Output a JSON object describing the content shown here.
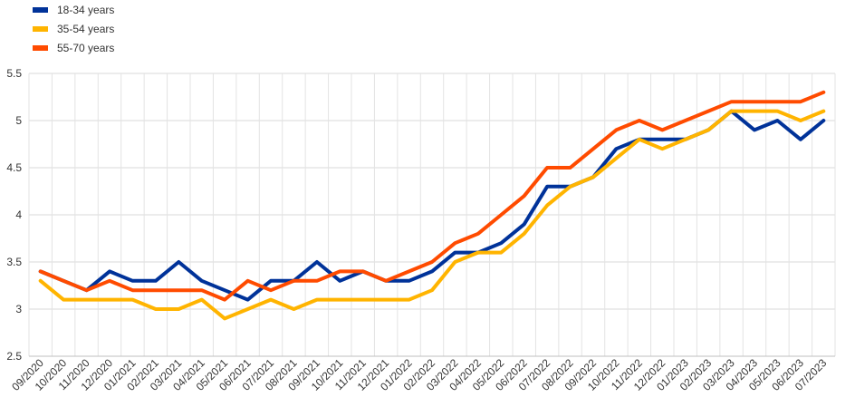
{
  "chart_data": {
    "type": "line",
    "title": "",
    "xlabel": "",
    "ylabel": "",
    "ylim": [
      2.5,
      5.5
    ],
    "yticks": [
      "2.5",
      "3",
      "3.5",
      "4",
      "4.5",
      "5",
      "5.5"
    ],
    "grid": true,
    "legend_position": "top-left",
    "categories": [
      "09/2020",
      "10/2020",
      "11/2020",
      "12/2020",
      "01/2021",
      "02/2021",
      "03/2021",
      "04/2021",
      "05/2021",
      "06/2021",
      "07/2021",
      "08/2021",
      "09/2021",
      "10/2021",
      "11/2021",
      "12/2021",
      "01/2022",
      "02/2022",
      "03/2022",
      "04/2022",
      "05/2022",
      "06/2022",
      "07/2022",
      "08/2022",
      "09/2022",
      "10/2022",
      "11/2022",
      "12/2022",
      "01/2023",
      "02/2023",
      "03/2023",
      "04/2023",
      "05/2023",
      "06/2023",
      "07/2023"
    ],
    "series": [
      {
        "name": "18-34 years",
        "color": "#003299",
        "values": [
          3.4,
          3.3,
          3.2,
          3.4,
          3.3,
          3.3,
          3.5,
          3.3,
          3.2,
          3.1,
          3.3,
          3.3,
          3.5,
          3.3,
          3.4,
          3.3,
          3.3,
          3.4,
          3.6,
          3.6,
          3.7,
          3.9,
          4.3,
          4.3,
          4.4,
          4.7,
          4.8,
          4.8,
          4.8,
          4.9,
          5.1,
          4.9,
          5.0,
          4.8,
          5.0
        ]
      },
      {
        "name": "35-54 years",
        "color": "#FFB400",
        "values": [
          3.3,
          3.1,
          3.1,
          3.1,
          3.1,
          3.0,
          3.0,
          3.1,
          2.9,
          3.0,
          3.1,
          3.0,
          3.1,
          3.1,
          3.1,
          3.1,
          3.1,
          3.2,
          3.5,
          3.6,
          3.6,
          3.8,
          4.1,
          4.3,
          4.4,
          4.6,
          4.8,
          4.7,
          4.8,
          4.9,
          5.1,
          5.1,
          5.1,
          5.0,
          5.1
        ]
      },
      {
        "name": "55-70 years",
        "color": "#FF4B00",
        "values": [
          3.4,
          3.3,
          3.2,
          3.3,
          3.2,
          3.2,
          3.2,
          3.2,
          3.1,
          3.3,
          3.2,
          3.3,
          3.3,
          3.4,
          3.4,
          3.3,
          3.4,
          3.5,
          3.7,
          3.8,
          4.0,
          4.2,
          4.5,
          4.5,
          4.7,
          4.9,
          5.0,
          4.9,
          5.0,
          5.1,
          5.2,
          5.2,
          5.2,
          5.2,
          5.3
        ]
      }
    ]
  }
}
